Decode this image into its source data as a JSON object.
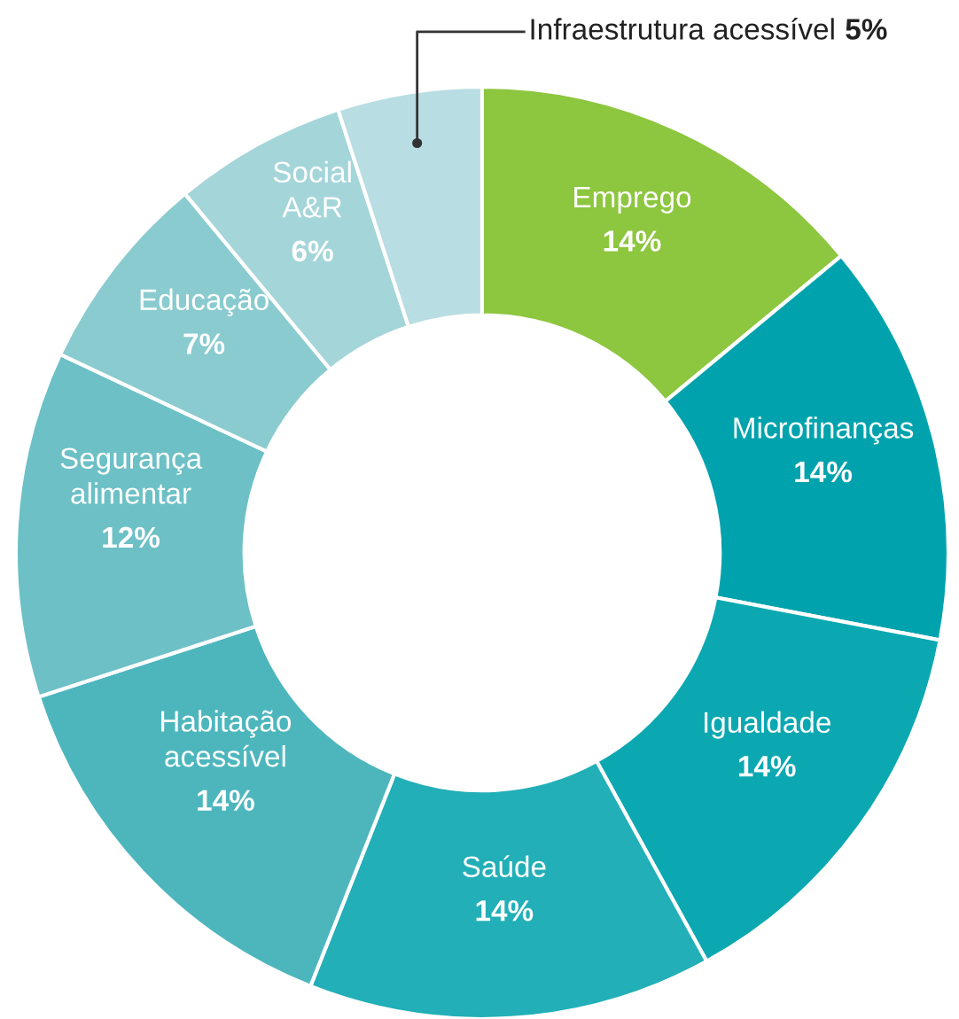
{
  "chart_data": {
    "type": "donut",
    "categories": [
      "Emprego",
      "Microfinanças",
      "Igualdade",
      "Saúde",
      "Habitação\nacessível",
      "Segurança\nalimentar",
      "Educação",
      "Social\nA&R",
      "Infraestrutura acessível"
    ],
    "values": [
      14,
      14,
      14,
      14,
      14,
      12,
      7,
      6,
      5
    ],
    "value_labels": [
      "14%",
      "14%",
      "14%",
      "14%",
      "14%",
      "12%",
      "7%",
      "6%",
      "5%"
    ],
    "colors": [
      "#8dc63f",
      "#00a3ad",
      "#0ca8b2",
      "#22afb7",
      "#4db6bd",
      "#6cc0c6",
      "#8acbcf",
      "#a4d5d9",
      "#b8dde2"
    ]
  }
}
